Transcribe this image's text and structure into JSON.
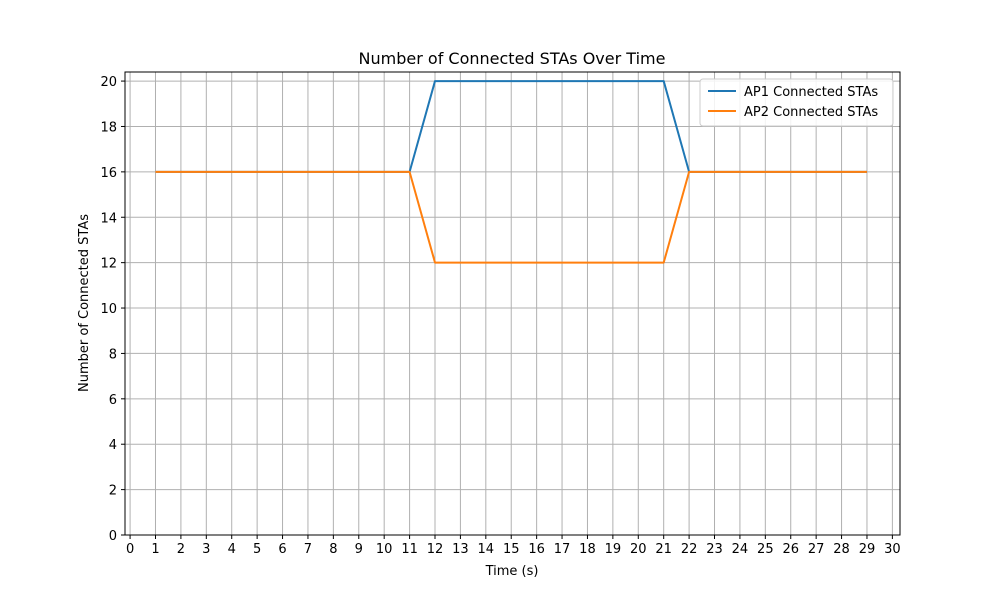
{
  "chart_data": {
    "type": "line",
    "title": "Number of Connected STAs Over Time",
    "xlabel": "Time (s)",
    "ylabel": "Number of Connected STAs",
    "xlim": [
      -0.2,
      30.3
    ],
    "ylim": [
      0,
      20.4
    ],
    "xticks": [
      0,
      1,
      2,
      3,
      4,
      5,
      6,
      7,
      8,
      9,
      10,
      11,
      12,
      13,
      14,
      15,
      16,
      17,
      18,
      19,
      20,
      21,
      22,
      23,
      24,
      25,
      26,
      27,
      28,
      29,
      30
    ],
    "yticks": [
      0,
      2,
      4,
      6,
      8,
      10,
      12,
      14,
      16,
      18,
      20
    ],
    "grid": true,
    "legend_position": "top-right",
    "x": [
      1,
      2,
      3,
      4,
      5,
      6,
      7,
      8,
      9,
      10,
      11,
      12,
      13,
      14,
      15,
      16,
      17,
      18,
      19,
      20,
      21,
      22,
      23,
      24,
      25,
      26,
      27,
      28,
      29
    ],
    "series": [
      {
        "name": "AP1 Connected STAs",
        "color": "#1f77b4",
        "values": [
          16,
          16,
          16,
          16,
          16,
          16,
          16,
          16,
          16,
          16,
          16,
          20,
          20,
          20,
          20,
          20,
          20,
          20,
          20,
          20,
          20,
          16,
          16,
          16,
          16,
          16,
          16,
          16,
          16
        ]
      },
      {
        "name": "AP2 Connected STAs",
        "color": "#ff7f0e",
        "values": [
          16,
          16,
          16,
          16,
          16,
          16,
          16,
          16,
          16,
          16,
          16,
          12,
          12,
          12,
          12,
          12,
          12,
          12,
          12,
          12,
          12,
          16,
          16,
          16,
          16,
          16,
          16,
          16,
          16
        ]
      }
    ]
  }
}
